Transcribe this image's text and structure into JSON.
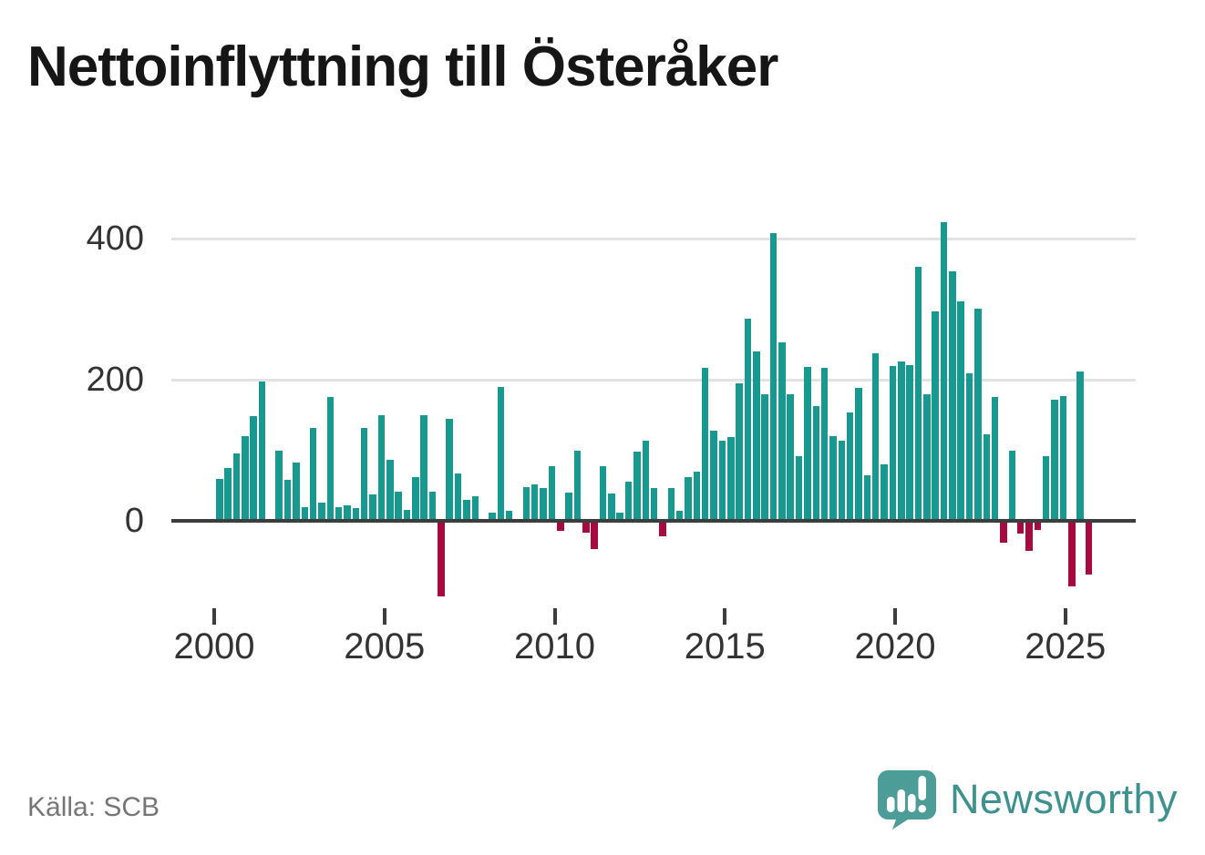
{
  "title": "Nettoinflyttning till Österåker",
  "source": "Källa: SCB",
  "branding": {
    "name": "Newsworthy"
  },
  "colors": {
    "positive": "#17998f",
    "negative": "#a60a3e",
    "axis": "#3d3d3d",
    "grid": "#e2e2e2",
    "title": "#161616",
    "tick_labels": "#333333",
    "source_text": "#767676",
    "brand": "#3e918e",
    "brand_icon": "#4c9c98"
  },
  "chart_data": {
    "type": "bar",
    "title": "Nettoinflyttning till Österåker",
    "xlabel": "",
    "ylabel": "",
    "grid": "horizontal",
    "legend": "none",
    "yticks": [
      0,
      200,
      400
    ],
    "ylim": [
      -130,
      450
    ],
    "xticks": [
      2000,
      2005,
      2010,
      2015,
      2020,
      2025
    ],
    "categories": [
      "2000Q1",
      "2000Q2",
      "2000Q3",
      "2000Q4",
      "2001Q1",
      "2001Q2",
      "2001Q3",
      "2001Q4",
      "2002Q1",
      "2002Q2",
      "2002Q3",
      "2002Q4",
      "2003Q1",
      "2003Q2",
      "2003Q3",
      "2003Q4",
      "2004Q1",
      "2004Q2",
      "2004Q3",
      "2004Q4",
      "2005Q1",
      "2005Q2",
      "2005Q3",
      "2005Q4",
      "2006Q1",
      "2006Q2",
      "2006Q3",
      "2006Q4",
      "2007Q1",
      "2007Q2",
      "2007Q3",
      "2007Q4",
      "2008Q1",
      "2008Q2",
      "2008Q3",
      "2008Q4",
      "2009Q1",
      "2009Q2",
      "2009Q3",
      "2009Q4",
      "2010Q1",
      "2010Q2",
      "2010Q3",
      "2010Q4",
      "2011Q1",
      "2011Q2",
      "2011Q3",
      "2011Q4",
      "2012Q1",
      "2012Q2",
      "2012Q3",
      "2012Q4",
      "2013Q1",
      "2013Q2",
      "2013Q3",
      "2013Q4",
      "2014Q1",
      "2014Q2",
      "2014Q3",
      "2014Q4",
      "2015Q1",
      "2015Q2",
      "2015Q3",
      "2015Q4",
      "2016Q1",
      "2016Q2",
      "2016Q3",
      "2016Q4",
      "2017Q1",
      "2017Q2",
      "2017Q3",
      "2017Q4",
      "2018Q1",
      "2018Q2",
      "2018Q3",
      "2018Q4",
      "2019Q1",
      "2019Q2",
      "2019Q3",
      "2019Q4",
      "2020Q1",
      "2020Q2",
      "2020Q3",
      "2020Q4",
      "2021Q1",
      "2021Q2",
      "2021Q3",
      "2021Q4",
      "2022Q1",
      "2022Q2",
      "2022Q3",
      "2022Q4",
      "2023Q1",
      "2023Q2",
      "2023Q3",
      "2023Q4",
      "2024Q1",
      "2024Q2",
      "2024Q3",
      "2024Q4",
      "2025Q1",
      "2025Q2",
      "2025Q3"
    ],
    "values": [
      60,
      75,
      95,
      120,
      148,
      198,
      2,
      100,
      58,
      83,
      20,
      132,
      26,
      175,
      20,
      22,
      18,
      131,
      37,
      150,
      86,
      41,
      15,
      62,
      150,
      41,
      -105,
      144,
      67,
      30,
      35,
      2,
      11,
      190,
      14,
      2,
      48,
      52,
      46,
      77,
      -12,
      40,
      100,
      -14,
      -38,
      77,
      39,
      12,
      55,
      98,
      113,
      46,
      -19,
      46,
      14,
      62,
      70,
      217,
      128,
      114,
      119,
      195,
      287,
      240,
      180,
      408,
      253,
      180,
      91,
      218,
      163,
      217,
      120,
      114,
      154,
      189,
      65,
      238,
      80,
      220,
      226,
      221,
      360,
      180,
      297,
      423,
      353,
      311,
      209,
      301,
      123,
      176,
      -28,
      100,
      -15,
      -40,
      -10,
      92,
      172,
      177,
      -90,
      211,
      -73
    ]
  }
}
